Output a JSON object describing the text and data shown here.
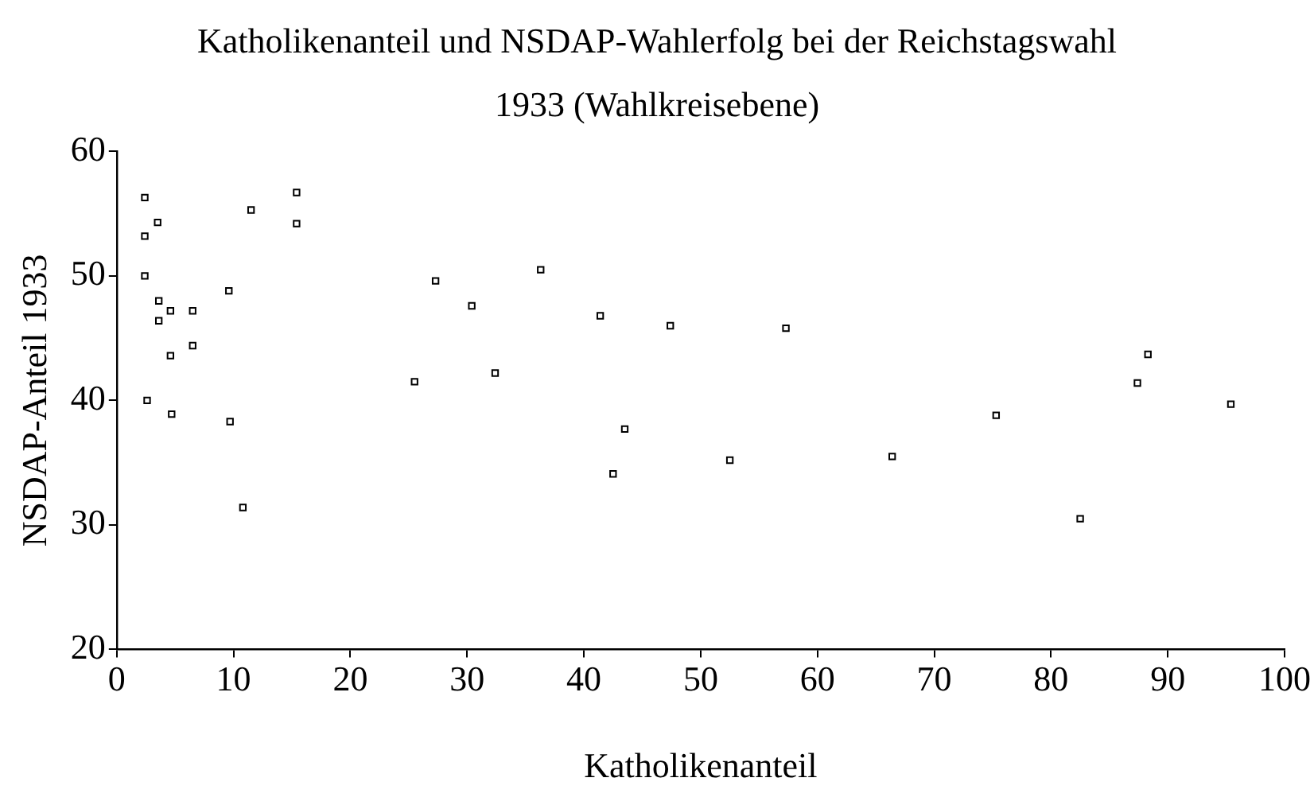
{
  "chart_data": {
    "type": "scatter",
    "title": "Katholikenanteil und NSDAP-Wahlerfolg bei der Reichstagswahl 1933 (Wahlkreisebene)",
    "xlabel": "Katholikenanteil",
    "ylabel": "NSDAP-Anteil 1933",
    "x": [
      2.4,
      2.4,
      3.5,
      2.4,
      3.6,
      3.6,
      4.6,
      6.5,
      4.6,
      6.5,
      2.6,
      4.7,
      9.6,
      9.7,
      10.8,
      11.5,
      15.4,
      15.4,
      27.3,
      36.3,
      30.4,
      41.4,
      47.4,
      57.3,
      32.4,
      25.5,
      43.5,
      52.5,
      42.5,
      88.3,
      87.4,
      95.4,
      75.3,
      66.4,
      82.5
    ],
    "series": [
      {
        "color": "#000000",
        "values": [
          56.3,
          53.2,
          54.3,
          50.0,
          48.0,
          46.4,
          47.2,
          47.2,
          43.6,
          44.4,
          40.0,
          38.9,
          48.8,
          38.3,
          31.4,
          55.3,
          56.7,
          54.2,
          49.6,
          50.5,
          47.6,
          46.8,
          46.0,
          45.8,
          42.2,
          41.5,
          37.7,
          35.2,
          34.1,
          43.7,
          41.4,
          39.7,
          38.8,
          35.5,
          30.5
        ]
      }
    ],
    "xlim": [
      0,
      100
    ],
    "xticks": [
      0,
      10,
      20,
      30,
      40,
      50,
      60,
      70,
      80,
      90,
      100
    ],
    "ylim": [
      20,
      60
    ],
    "yticks": [
      20,
      30,
      40,
      50,
      60
    ],
    "marker": "square",
    "grid": false,
    "legend": false
  }
}
